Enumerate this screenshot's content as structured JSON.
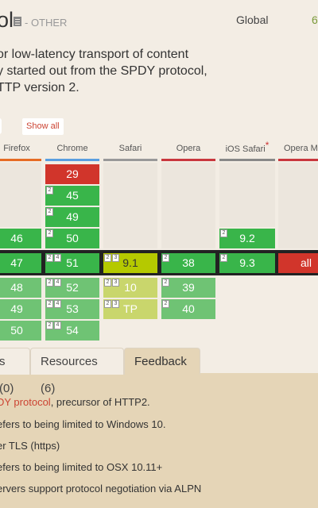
{
  "header": {
    "title_fragment": "ol",
    "category": "- OTHER",
    "global_label": "Global",
    "global_value": "6"
  },
  "description": {
    "lines": [
      "or low-latency transport of content",
      "y started out from the SPDY protocol,",
      "TTP version 2."
    ]
  },
  "controls": {
    "show_all": "Show all"
  },
  "browsers": [
    {
      "name": "Firefox",
      "color": "#e66c24"
    },
    {
      "name": "Chrome",
      "color": "#5a9ee0"
    },
    {
      "name": "Safari",
      "color": "#999999"
    },
    {
      "name": "Opera",
      "color": "#c9373d"
    },
    {
      "name": "iOS Safari",
      "color": "#888888",
      "asterisk": "*"
    },
    {
      "name": "Opera M",
      "color": "#c9373d"
    }
  ],
  "support": {
    "firefox": [
      "46",
      "47",
      "48",
      "49",
      "50"
    ],
    "chrome": [
      "29",
      "45",
      "49",
      "50",
      "51",
      "52",
      "53",
      "54"
    ],
    "safari": [
      "9.1",
      "10",
      "TP"
    ],
    "opera": [
      "38",
      "39",
      "40"
    ],
    "ios_safari": [
      "9.2",
      "9.3"
    ],
    "opera_mini": [
      "all"
    ]
  },
  "note_tags": {
    "n2": "2",
    "n3": "3",
    "n4": "4"
  },
  "tabs": [
    {
      "label": "s (0)"
    },
    {
      "label": "Resources (6)"
    },
    {
      "label": "Feedback"
    }
  ],
  "notes": {
    "n1_link": "DY protocol",
    "n1_rest": ", precursor of HTTP2.",
    "n2": "efers to being limited to Windows 10.",
    "n3": "er TLS (https)",
    "n4": "efers to being limited to OSX 10.11+",
    "n5": "ervers support protocol negotiation via ALPN"
  }
}
